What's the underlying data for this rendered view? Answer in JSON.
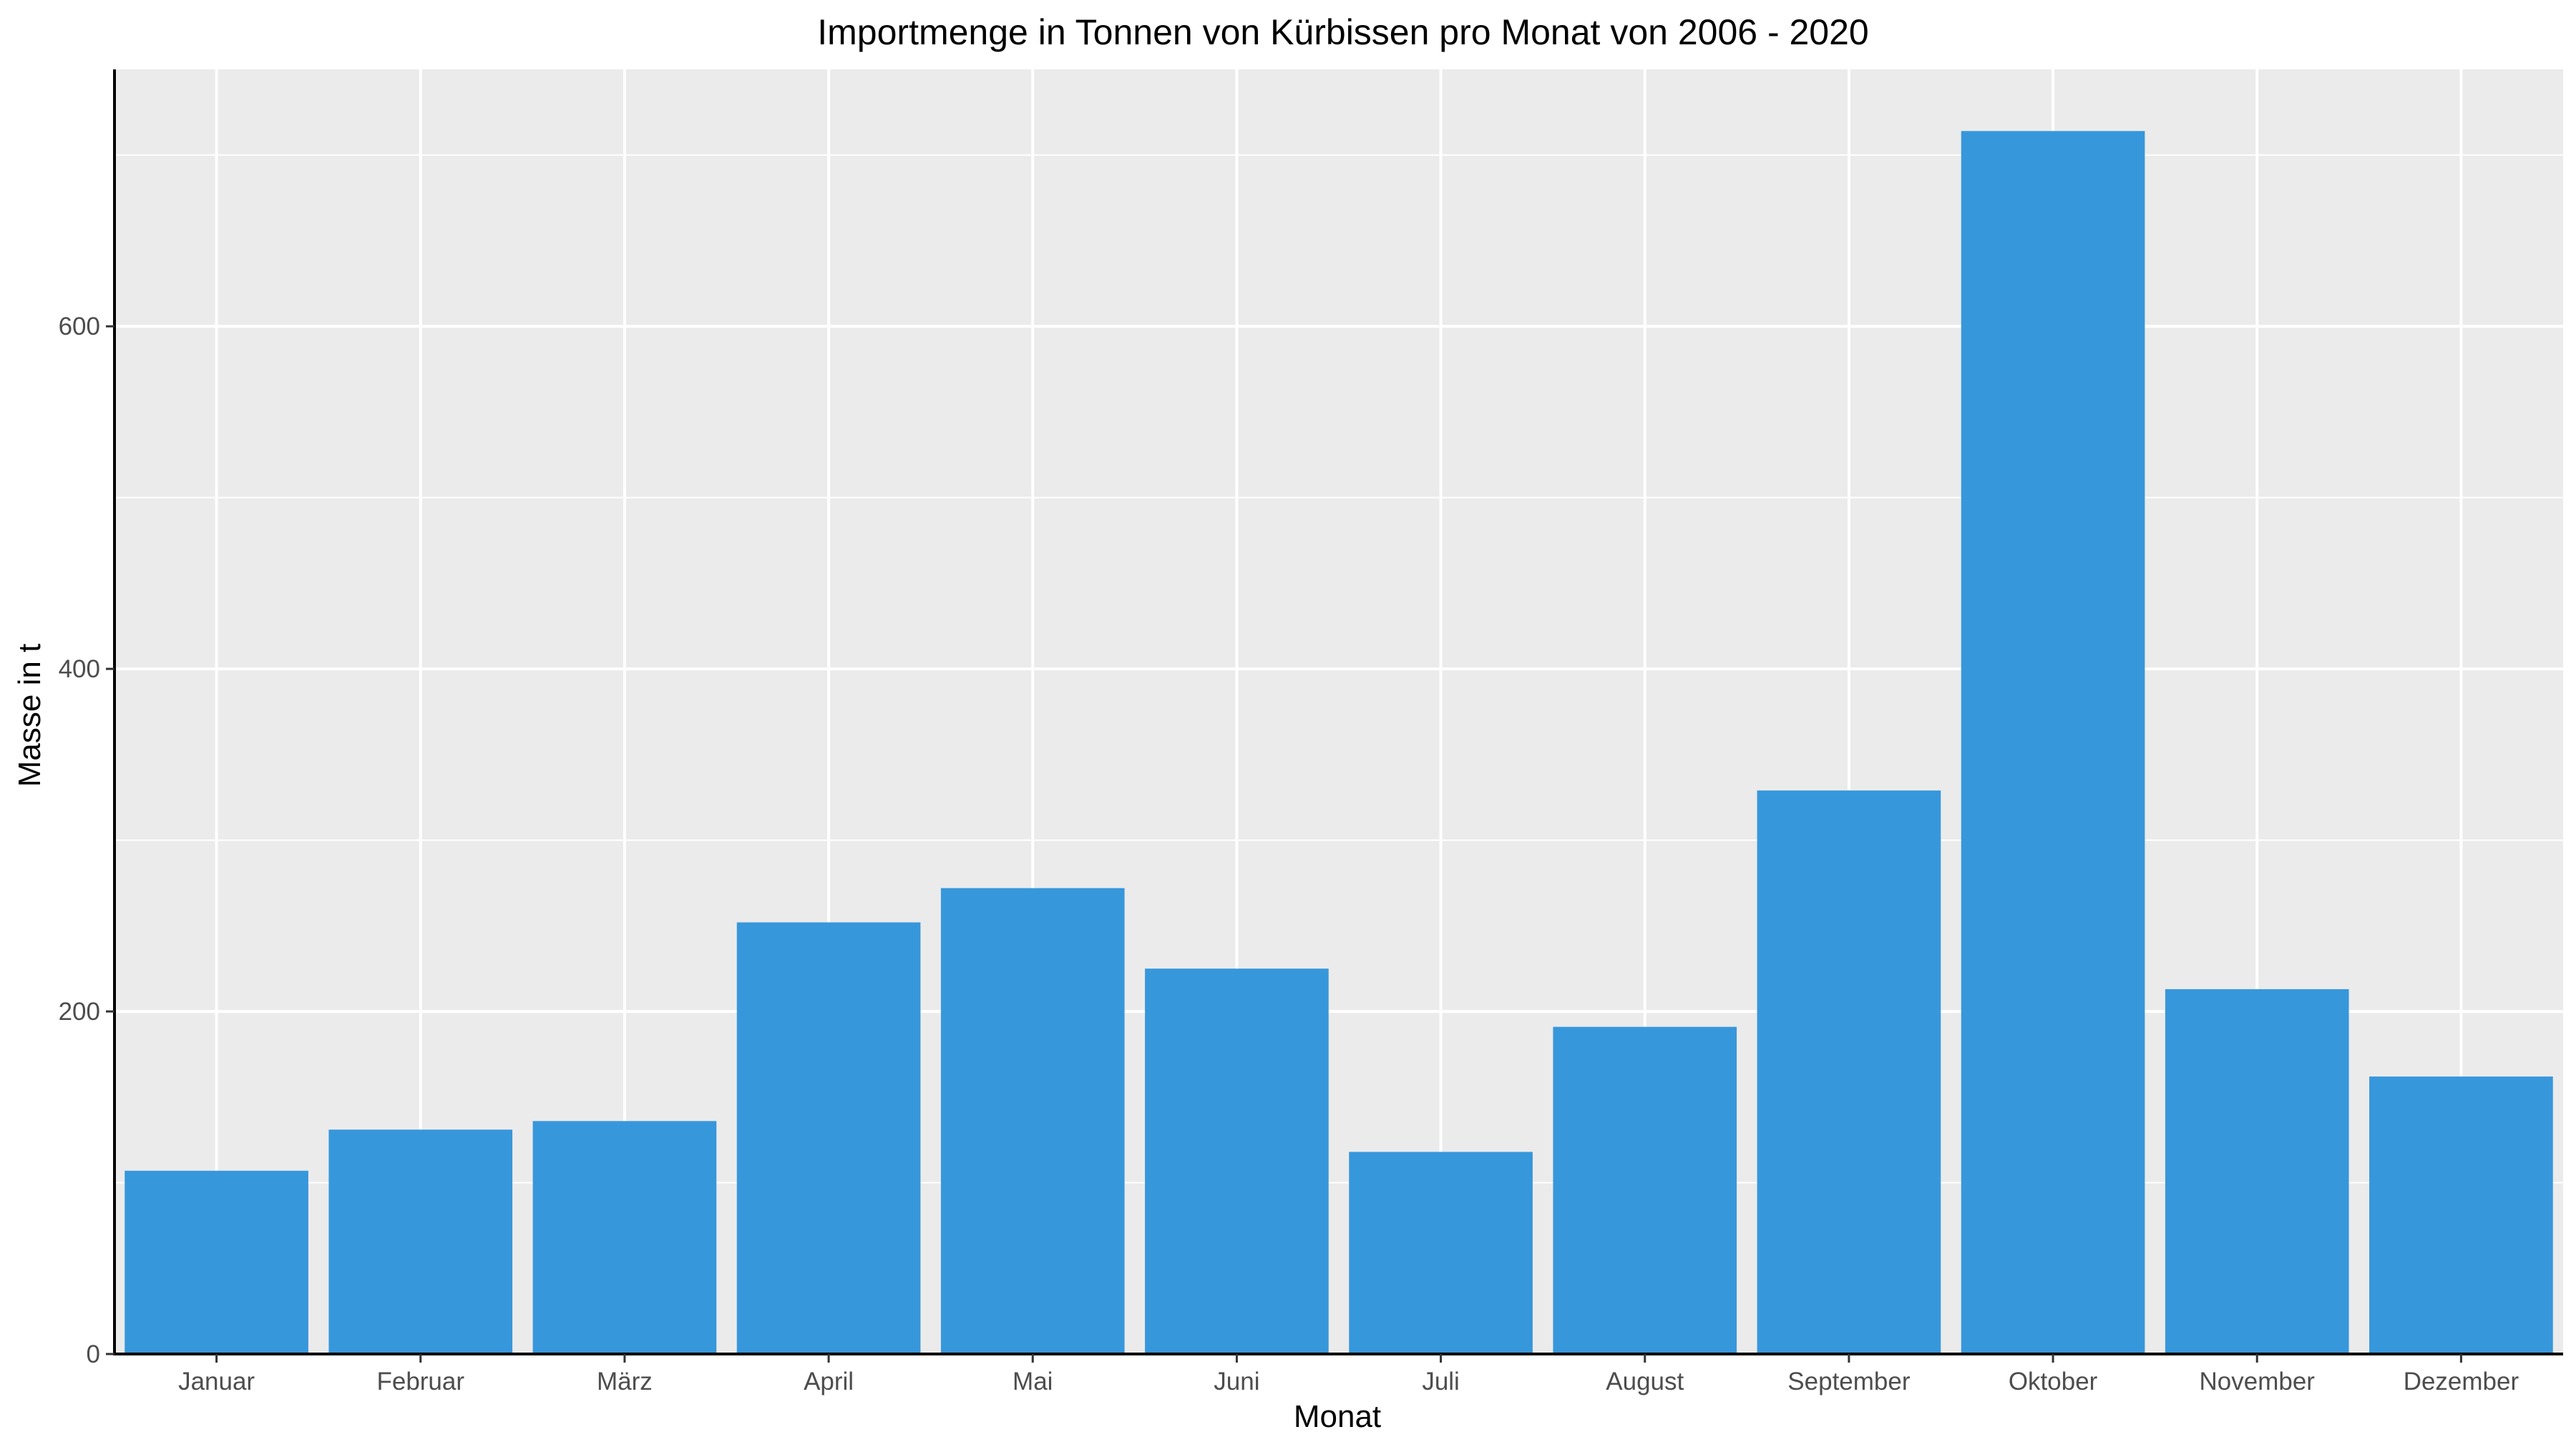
{
  "chart_data": {
    "type": "bar",
    "title": "Importmenge in Tonnen von Kürbissen pro Monat von 2006 - 2020",
    "xlabel": "Monat",
    "ylabel": "Masse in t",
    "categories": [
      "Januar",
      "Februar",
      "März",
      "April",
      "Mai",
      "Juni",
      "Juli",
      "August",
      "September",
      "Oktober",
      "November",
      "Dezember"
    ],
    "values": [
      107,
      131,
      136,
      252,
      272,
      225,
      118,
      191,
      329,
      714,
      213,
      162
    ],
    "ylim": [
      0,
      750
    ],
    "yticks": [
      0,
      200,
      400,
      600
    ],
    "ytick_labels": [
      "0",
      "200",
      "400",
      "600"
    ],
    "grid": true,
    "legend": "none",
    "colors": {
      "bar": "#3797db",
      "panel_background": "#ebebeb",
      "grid": "#ffffff",
      "axis_line": "#000000"
    }
  }
}
